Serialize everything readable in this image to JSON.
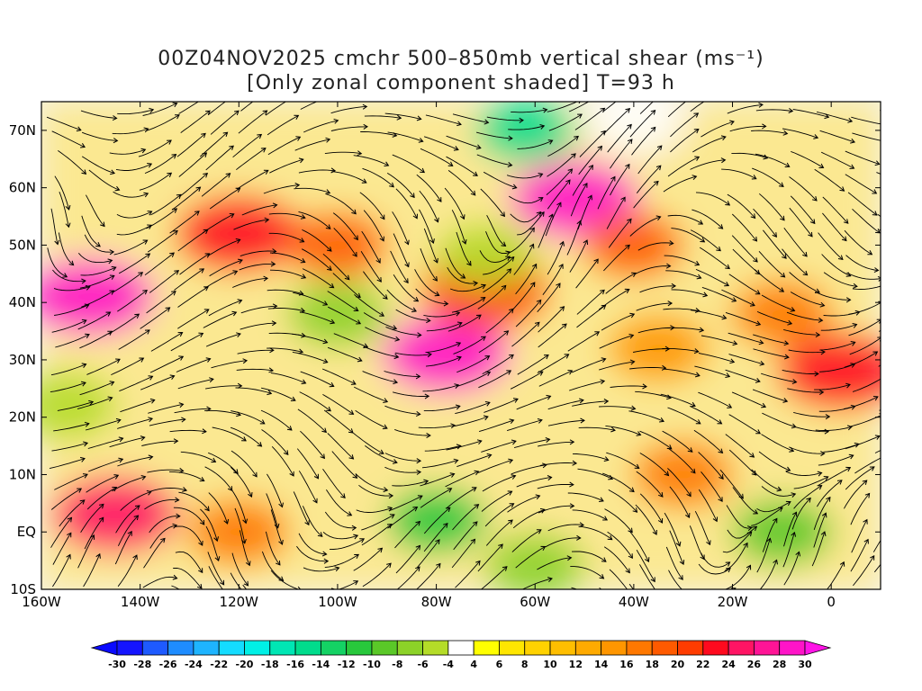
{
  "title": {
    "line1": "00Z04NOV2025 cmchr 500–850mb vertical shear (ms⁻¹)",
    "line2": "[Only zonal component shaded] T=93 h"
  },
  "map": {
    "projection": "lat-lon",
    "lon_range": [
      -160,
      10
    ],
    "lat_range": [
      -10,
      75
    ],
    "x_ticks": [
      {
        "lon": -160,
        "label": "160W"
      },
      {
        "lon": -140,
        "label": "140W"
      },
      {
        "lon": -120,
        "label": "120W"
      },
      {
        "lon": -100,
        "label": "100W"
      },
      {
        "lon": -80,
        "label": "80W"
      },
      {
        "lon": -60,
        "label": "60W"
      },
      {
        "lon": -40,
        "label": "40W"
      },
      {
        "lon": -20,
        "label": "20W"
      },
      {
        "lon": 0,
        "label": "0"
      }
    ],
    "y_ticks": [
      {
        "lat": 70,
        "label": "70N"
      },
      {
        "lat": 60,
        "label": "60N"
      },
      {
        "lat": 50,
        "label": "50N"
      },
      {
        "lat": 40,
        "label": "40N"
      },
      {
        "lat": 30,
        "label": "30N"
      },
      {
        "lat": 20,
        "label": "20N"
      },
      {
        "lat": 10,
        "label": "10N"
      },
      {
        "lat": 0,
        "label": "EQ"
      },
      {
        "lat": -10,
        "label": "10S"
      }
    ],
    "shear_features": [
      {
        "lon": -150,
        "lat": 41,
        "value": 28
      },
      {
        "lon": -120,
        "lat": 52,
        "value": 22
      },
      {
        "lon": -100,
        "lat": 50,
        "value": 18
      },
      {
        "lon": -78,
        "lat": 31,
        "value": 28
      },
      {
        "lon": -70,
        "lat": 42,
        "value": 20
      },
      {
        "lon": -52,
        "lat": 58,
        "value": 28
      },
      {
        "lon": -40,
        "lat": 50,
        "value": 18
      },
      {
        "lon": -35,
        "lat": 32,
        "value": 14
      },
      {
        "lon": 2,
        "lat": 28,
        "value": 22
      },
      {
        "lon": -10,
        "lat": 38,
        "value": 16
      },
      {
        "lon": -145,
        "lat": 3,
        "value": 24
      },
      {
        "lon": -120,
        "lat": 0,
        "value": 16
      },
      {
        "lon": -30,
        "lat": 10,
        "value": 16
      },
      {
        "lon": -80,
        "lat": 2,
        "value": -12
      },
      {
        "lon": -60,
        "lat": -6,
        "value": -8
      },
      {
        "lon": -10,
        "lat": 0,
        "value": -10
      },
      {
        "lon": -100,
        "lat": 38,
        "value": -8
      },
      {
        "lon": -70,
        "lat": 48,
        "value": -6
      },
      {
        "lon": -62,
        "lat": 70,
        "value": -16
      },
      {
        "lon": -155,
        "lat": 22,
        "value": -6
      },
      {
        "lon": -40,
        "lat": 72,
        "value": -4
      }
    ]
  },
  "colorbar": {
    "label_values": [
      "-30",
      "-28",
      "-26",
      "-24",
      "-22",
      "-20",
      "-18",
      "-16",
      "-14",
      "-12",
      "-10",
      "-8",
      "-6",
      "-4",
      "4",
      "6",
      "8",
      "10",
      "12",
      "14",
      "16",
      "18",
      "20",
      "22",
      "24",
      "26",
      "28",
      "30"
    ],
    "colors": [
      "#1414ff",
      "#1e5aff",
      "#1e8cff",
      "#1eb4ff",
      "#14dcff",
      "#00f0e6",
      "#00e6b4",
      "#00dc8c",
      "#14d264",
      "#28c83c",
      "#5ac828",
      "#8cd228",
      "#b4dc28",
      "#ffffff",
      "#ffff00",
      "#ffe600",
      "#ffd200",
      "#ffbe00",
      "#ffaa00",
      "#ff9600",
      "#ff7800",
      "#ff5a00",
      "#ff3c00",
      "#ff0a1e",
      "#ff1464",
      "#ff1496",
      "#ff14c8"
    ],
    "low_arrow_color": "#0a0aff",
    "high_arrow_color": "#ff14e6"
  }
}
